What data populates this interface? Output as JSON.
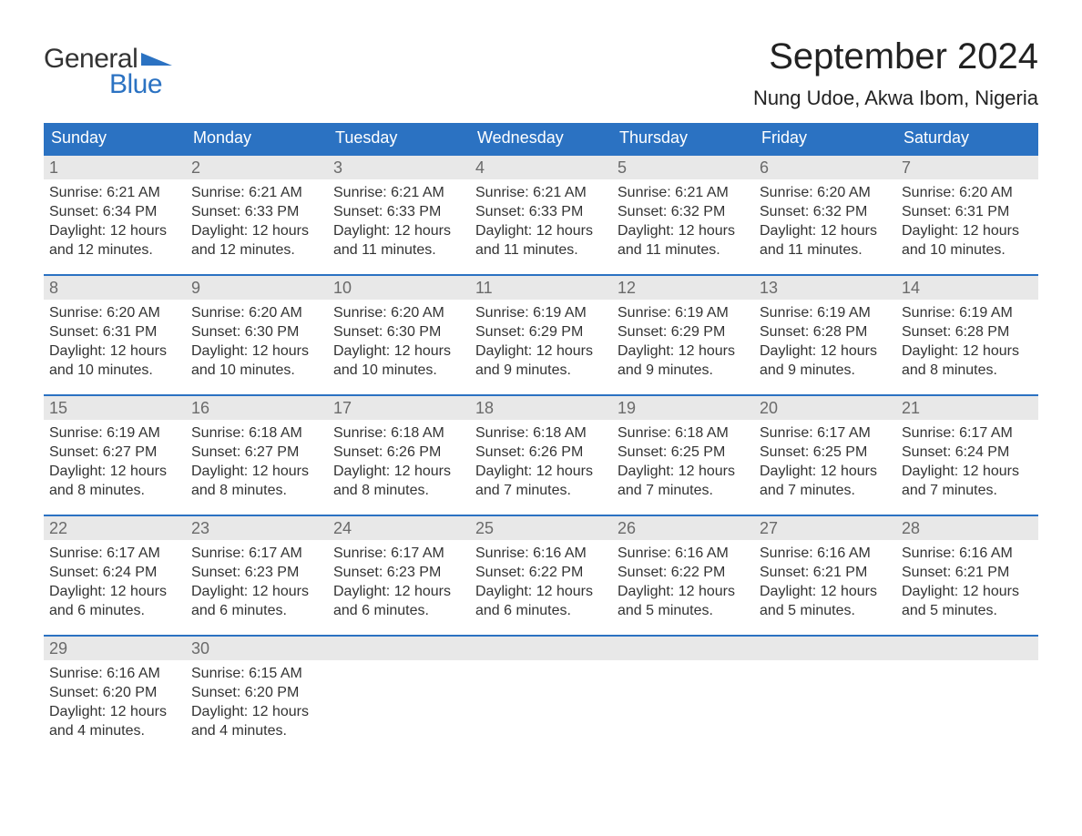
{
  "brand": {
    "word1": "General",
    "word2": "Blue"
  },
  "colors": {
    "header_bg": "#2b72c2",
    "header_text": "#ffffff",
    "daynum_bg": "#e8e8e8",
    "daynum_text": "#6a6a6a",
    "body_text": "#333333",
    "page_bg": "#ffffff",
    "week_border": "#2b72c2",
    "logo_blue": "#2b72c2"
  },
  "fonts": {
    "title_size_pt": 30,
    "subtitle_size_pt": 17,
    "header_size_pt": 14,
    "daynum_size_pt": 14,
    "body_size_pt": 12
  },
  "title": "September 2024",
  "location": "Nung Udoe, Akwa Ibom, Nigeria",
  "day_headers": [
    "Sunday",
    "Monday",
    "Tuesday",
    "Wednesday",
    "Thursday",
    "Friday",
    "Saturday"
  ],
  "weeks": [
    [
      {
        "n": "1",
        "sunrise": "Sunrise: 6:21 AM",
        "sunset": "Sunset: 6:34 PM",
        "dl1": "Daylight: 12 hours",
        "dl2": "and 12 minutes."
      },
      {
        "n": "2",
        "sunrise": "Sunrise: 6:21 AM",
        "sunset": "Sunset: 6:33 PM",
        "dl1": "Daylight: 12 hours",
        "dl2": "and 12 minutes."
      },
      {
        "n": "3",
        "sunrise": "Sunrise: 6:21 AM",
        "sunset": "Sunset: 6:33 PM",
        "dl1": "Daylight: 12 hours",
        "dl2": "and 11 minutes."
      },
      {
        "n": "4",
        "sunrise": "Sunrise: 6:21 AM",
        "sunset": "Sunset: 6:33 PM",
        "dl1": "Daylight: 12 hours",
        "dl2": "and 11 minutes."
      },
      {
        "n": "5",
        "sunrise": "Sunrise: 6:21 AM",
        "sunset": "Sunset: 6:32 PM",
        "dl1": "Daylight: 12 hours",
        "dl2": "and 11 minutes."
      },
      {
        "n": "6",
        "sunrise": "Sunrise: 6:20 AM",
        "sunset": "Sunset: 6:32 PM",
        "dl1": "Daylight: 12 hours",
        "dl2": "and 11 minutes."
      },
      {
        "n": "7",
        "sunrise": "Sunrise: 6:20 AM",
        "sunset": "Sunset: 6:31 PM",
        "dl1": "Daylight: 12 hours",
        "dl2": "and 10 minutes."
      }
    ],
    [
      {
        "n": "8",
        "sunrise": "Sunrise: 6:20 AM",
        "sunset": "Sunset: 6:31 PM",
        "dl1": "Daylight: 12 hours",
        "dl2": "and 10 minutes."
      },
      {
        "n": "9",
        "sunrise": "Sunrise: 6:20 AM",
        "sunset": "Sunset: 6:30 PM",
        "dl1": "Daylight: 12 hours",
        "dl2": "and 10 minutes."
      },
      {
        "n": "10",
        "sunrise": "Sunrise: 6:20 AM",
        "sunset": "Sunset: 6:30 PM",
        "dl1": "Daylight: 12 hours",
        "dl2": "and 10 minutes."
      },
      {
        "n": "11",
        "sunrise": "Sunrise: 6:19 AM",
        "sunset": "Sunset: 6:29 PM",
        "dl1": "Daylight: 12 hours",
        "dl2": "and 9 minutes."
      },
      {
        "n": "12",
        "sunrise": "Sunrise: 6:19 AM",
        "sunset": "Sunset: 6:29 PM",
        "dl1": "Daylight: 12 hours",
        "dl2": "and 9 minutes."
      },
      {
        "n": "13",
        "sunrise": "Sunrise: 6:19 AM",
        "sunset": "Sunset: 6:28 PM",
        "dl1": "Daylight: 12 hours",
        "dl2": "and 9 minutes."
      },
      {
        "n": "14",
        "sunrise": "Sunrise: 6:19 AM",
        "sunset": "Sunset: 6:28 PM",
        "dl1": "Daylight: 12 hours",
        "dl2": "and 8 minutes."
      }
    ],
    [
      {
        "n": "15",
        "sunrise": "Sunrise: 6:19 AM",
        "sunset": "Sunset: 6:27 PM",
        "dl1": "Daylight: 12 hours",
        "dl2": "and 8 minutes."
      },
      {
        "n": "16",
        "sunrise": "Sunrise: 6:18 AM",
        "sunset": "Sunset: 6:27 PM",
        "dl1": "Daylight: 12 hours",
        "dl2": "and 8 minutes."
      },
      {
        "n": "17",
        "sunrise": "Sunrise: 6:18 AM",
        "sunset": "Sunset: 6:26 PM",
        "dl1": "Daylight: 12 hours",
        "dl2": "and 8 minutes."
      },
      {
        "n": "18",
        "sunrise": "Sunrise: 6:18 AM",
        "sunset": "Sunset: 6:26 PM",
        "dl1": "Daylight: 12 hours",
        "dl2": "and 7 minutes."
      },
      {
        "n": "19",
        "sunrise": "Sunrise: 6:18 AM",
        "sunset": "Sunset: 6:25 PM",
        "dl1": "Daylight: 12 hours",
        "dl2": "and 7 minutes."
      },
      {
        "n": "20",
        "sunrise": "Sunrise: 6:17 AM",
        "sunset": "Sunset: 6:25 PM",
        "dl1": "Daylight: 12 hours",
        "dl2": "and 7 minutes."
      },
      {
        "n": "21",
        "sunrise": "Sunrise: 6:17 AM",
        "sunset": "Sunset: 6:24 PM",
        "dl1": "Daylight: 12 hours",
        "dl2": "and 7 minutes."
      }
    ],
    [
      {
        "n": "22",
        "sunrise": "Sunrise: 6:17 AM",
        "sunset": "Sunset: 6:24 PM",
        "dl1": "Daylight: 12 hours",
        "dl2": "and 6 minutes."
      },
      {
        "n": "23",
        "sunrise": "Sunrise: 6:17 AM",
        "sunset": "Sunset: 6:23 PM",
        "dl1": "Daylight: 12 hours",
        "dl2": "and 6 minutes."
      },
      {
        "n": "24",
        "sunrise": "Sunrise: 6:17 AM",
        "sunset": "Sunset: 6:23 PM",
        "dl1": "Daylight: 12 hours",
        "dl2": "and 6 minutes."
      },
      {
        "n": "25",
        "sunrise": "Sunrise: 6:16 AM",
        "sunset": "Sunset: 6:22 PM",
        "dl1": "Daylight: 12 hours",
        "dl2": "and 6 minutes."
      },
      {
        "n": "26",
        "sunrise": "Sunrise: 6:16 AM",
        "sunset": "Sunset: 6:22 PM",
        "dl1": "Daylight: 12 hours",
        "dl2": "and 5 minutes."
      },
      {
        "n": "27",
        "sunrise": "Sunrise: 6:16 AM",
        "sunset": "Sunset: 6:21 PM",
        "dl1": "Daylight: 12 hours",
        "dl2": "and 5 minutes."
      },
      {
        "n": "28",
        "sunrise": "Sunrise: 6:16 AM",
        "sunset": "Sunset: 6:21 PM",
        "dl1": "Daylight: 12 hours",
        "dl2": "and 5 minutes."
      }
    ],
    [
      {
        "n": "29",
        "sunrise": "Sunrise: 6:16 AM",
        "sunset": "Sunset: 6:20 PM",
        "dl1": "Daylight: 12 hours",
        "dl2": "and 4 minutes."
      },
      {
        "n": "30",
        "sunrise": "Sunrise: 6:15 AM",
        "sunset": "Sunset: 6:20 PM",
        "dl1": "Daylight: 12 hours",
        "dl2": "and 4 minutes."
      },
      {
        "empty": true
      },
      {
        "empty": true
      },
      {
        "empty": true
      },
      {
        "empty": true
      },
      {
        "empty": true
      }
    ]
  ]
}
